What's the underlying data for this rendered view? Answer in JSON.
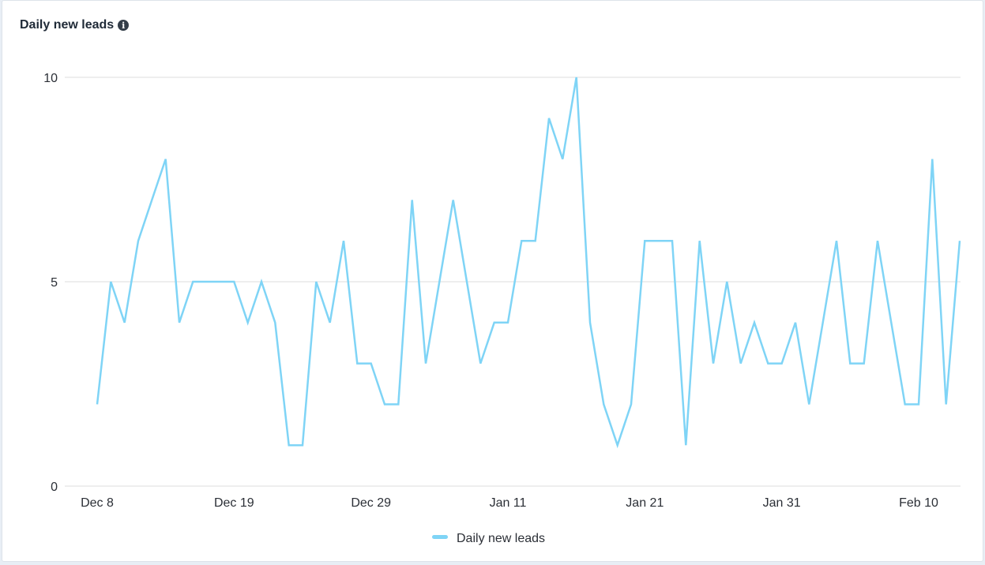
{
  "chart_data": {
    "type": "line",
    "title": "Daily new leads",
    "xlabel": "",
    "ylabel": "",
    "ylim": [
      0,
      10
    ],
    "yticks": [
      0,
      5,
      10
    ],
    "grid": true,
    "legend_position": "bottom",
    "x_tick_labels": [
      {
        "index": 0,
        "label": "Dec 8"
      },
      {
        "index": 10,
        "label": "Dec 19"
      },
      {
        "index": 20,
        "label": "Dec 29"
      },
      {
        "index": 30,
        "label": "Jan 11"
      },
      {
        "index": 40,
        "label": "Jan 21"
      },
      {
        "index": 50,
        "label": "Jan 31"
      },
      {
        "index": 60,
        "label": "Feb 10"
      }
    ],
    "series": [
      {
        "name": "Daily new leads",
        "color": "#7fd4f6",
        "values": [
          2,
          5,
          4,
          6,
          7,
          8,
          4,
          5,
          5,
          5,
          5,
          4,
          5,
          4,
          1,
          1,
          5,
          4,
          6,
          3,
          3,
          2,
          2,
          7,
          3,
          5,
          7,
          5,
          3,
          4,
          4,
          6,
          6,
          9,
          8,
          10,
          4,
          2,
          1,
          2,
          6,
          6,
          6,
          1,
          6,
          3,
          5,
          3,
          4,
          3,
          3,
          4,
          2,
          4,
          6,
          3,
          3,
          6,
          4,
          2,
          2,
          8,
          2,
          6
        ]
      }
    ]
  }
}
